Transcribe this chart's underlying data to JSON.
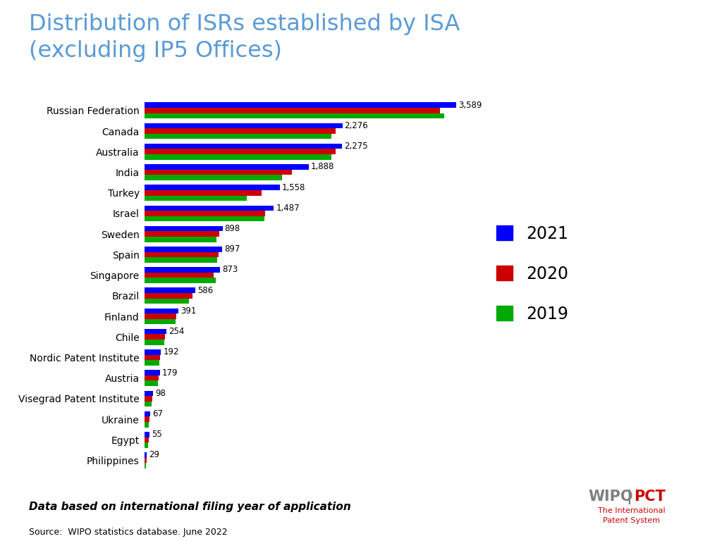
{
  "title": "Distribution of ISRs established by ISA\n(excluding IP5 Offices)",
  "title_color": "#5B9BD5",
  "categories": [
    "Russian Federation",
    "Canada",
    "Australia",
    "India",
    "Turkey",
    "Israel",
    "Sweden",
    "Spain",
    "Singapore",
    "Brazil",
    "Finland",
    "Chile",
    "Nordic Patent Institute",
    "Austria",
    "Visegrad Patent Institute",
    "Ukraine",
    "Egypt",
    "Philippines"
  ],
  "values_2021": [
    3589,
    2276,
    2275,
    1888,
    1558,
    1487,
    898,
    897,
    873,
    586,
    391,
    254,
    192,
    179,
    98,
    67,
    55,
    29
  ],
  "values_2020": [
    3400,
    2200,
    2200,
    1700,
    1350,
    1390,
    860,
    855,
    800,
    555,
    368,
    238,
    178,
    162,
    88,
    58,
    48,
    24
  ],
  "values_2019": [
    3450,
    2150,
    2150,
    1580,
    1180,
    1380,
    830,
    840,
    820,
    515,
    355,
    228,
    172,
    157,
    83,
    54,
    46,
    21
  ],
  "color_2021": "#0000FF",
  "color_2020": "#CC0000",
  "color_2019": "#00AA00",
  "label_values": [
    3589,
    2276,
    2275,
    1888,
    1558,
    1487,
    898,
    897,
    873,
    586,
    391,
    254,
    192,
    179,
    98,
    67,
    55,
    29
  ],
  "footer_note": "Data based on international filing year of application",
  "source": "Source:  WIPO statistics database. June 2022",
  "wipo_color": "#808080",
  "pct_color": "#CC0000",
  "sub_wipo": "The International\nPatent System",
  "background_color": "#FFFFFF"
}
